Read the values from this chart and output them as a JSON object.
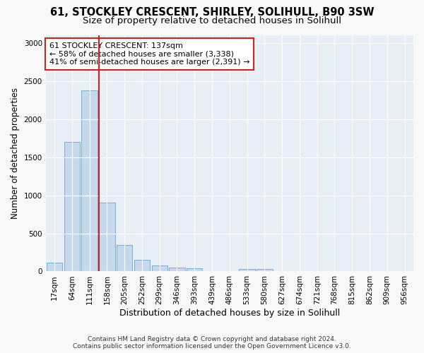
{
  "title1": "61, STOCKLEY CRESCENT, SHIRLEY, SOLIHULL, B90 3SW",
  "title2": "Size of property relative to detached houses in Solihull",
  "xlabel": "Distribution of detached houses by size in Solihull",
  "ylabel": "Number of detached properties",
  "categories": [
    "17sqm",
    "64sqm",
    "111sqm",
    "158sqm",
    "205sqm",
    "252sqm",
    "299sqm",
    "346sqm",
    "393sqm",
    "439sqm",
    "486sqm",
    "533sqm",
    "580sqm",
    "627sqm",
    "674sqm",
    "721sqm",
    "768sqm",
    "815sqm",
    "862sqm",
    "909sqm",
    "956sqm"
  ],
  "values": [
    120,
    1700,
    2380,
    900,
    350,
    150,
    80,
    50,
    40,
    0,
    0,
    30,
    30,
    0,
    0,
    0,
    0,
    0,
    0,
    0,
    0
  ],
  "bar_color": "#c5d8ec",
  "bar_edge_color": "#7aaed0",
  "red_line_bar_index": 3,
  "highlight_color": "#cc2222",
  "annotation_text": "61 STOCKLEY CRESCENT: 137sqm\n← 58% of detached houses are smaller (3,338)\n41% of semi-detached houses are larger (2,391) →",
  "annotation_box_color": "#ffffff",
  "annotation_box_edge_color": "#cc2222",
  "ylim": [
    0,
    3100
  ],
  "yticks": [
    0,
    500,
    1000,
    1500,
    2000,
    2500,
    3000
  ],
  "plot_bg_color": "#e8eef5",
  "fig_bg_color": "#f8f8f8",
  "grid_color": "#ffffff",
  "footnote": "Contains HM Land Registry data © Crown copyright and database right 2024.\nContains public sector information licensed under the Open Government Licence v3.0.",
  "title1_fontsize": 10.5,
  "title2_fontsize": 9.5,
  "xlabel_fontsize": 9,
  "ylabel_fontsize": 8.5,
  "tick_fontsize": 7.5,
  "annot_fontsize": 8
}
